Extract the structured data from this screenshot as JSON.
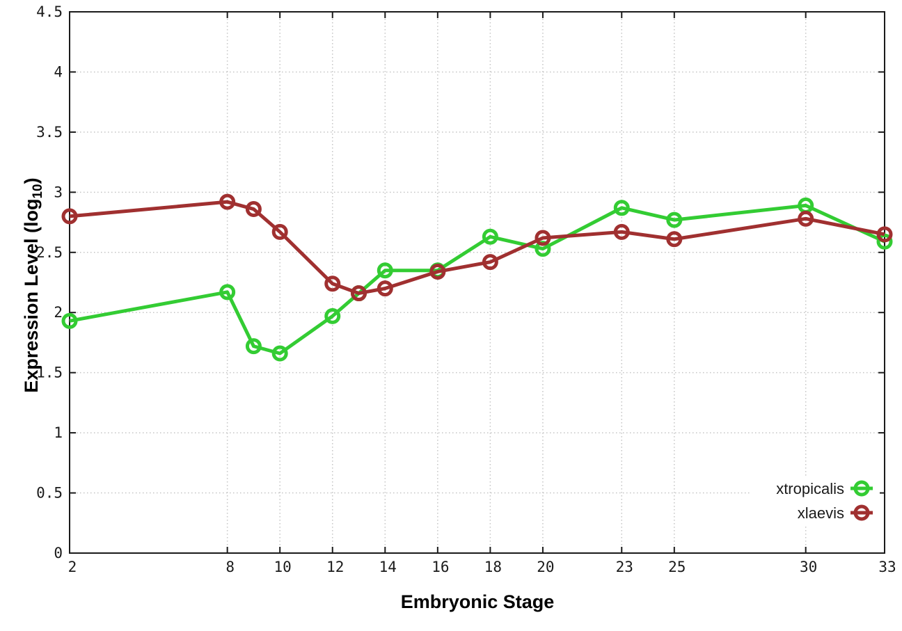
{
  "chart_data": {
    "type": "line",
    "title": "",
    "xlabel": "Embryonic Stage",
    "ylabel": "Expression Level (log10)",
    "ylabel_parts": {
      "main": "Expression Level (log",
      "sub": "10",
      "close": ")"
    },
    "xlim": [
      2,
      33
    ],
    "ylim": [
      0,
      4.5
    ],
    "grid": true,
    "legend_position": "bottom-right inside",
    "x_ticks": [
      "2",
      "8",
      "10",
      "12",
      "14",
      "16",
      "18",
      "20",
      "23",
      "25",
      "30",
      "33"
    ],
    "y_ticks": [
      "0",
      "0.5",
      "1",
      "1.5",
      "2",
      "2.5",
      "3",
      "3.5",
      "4",
      "4.5"
    ],
    "x": [
      2,
      8,
      9,
      10,
      12,
      13,
      14,
      16,
      18,
      20,
      23,
      25,
      30,
      33
    ],
    "series": [
      {
        "name": "xtropicalis",
        "color": "#33cc33",
        "values": [
          1.93,
          2.17,
          1.72,
          1.66,
          1.97,
          2.16,
          2.35,
          2.35,
          2.63,
          2.53,
          2.87,
          2.77,
          2.89,
          2.59
        ]
      },
      {
        "name": "xlaevis",
        "color": "#a03030",
        "values": [
          2.8,
          2.92,
          2.86,
          2.67,
          2.24,
          2.16,
          2.2,
          2.34,
          2.42,
          2.62,
          2.67,
          2.61,
          2.78,
          2.65
        ]
      }
    ],
    "style": {
      "border_color": "#1a1a1a",
      "grid_color": "#c4c4c4",
      "tick_label_color": "#1a1a1a",
      "background": "#ffffff"
    }
  }
}
